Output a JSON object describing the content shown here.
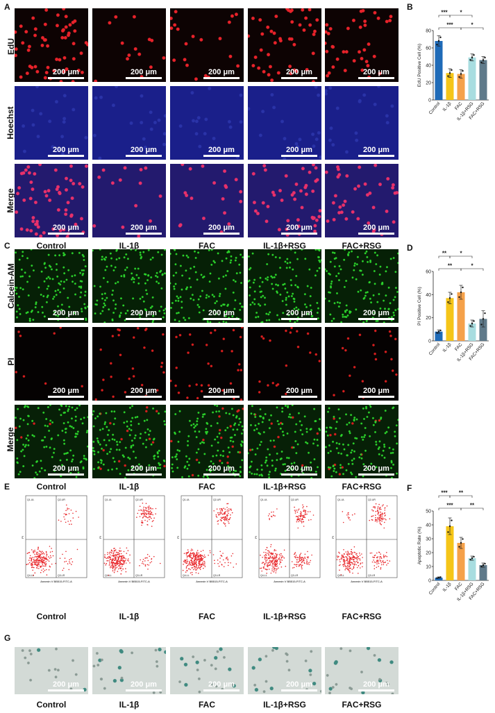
{
  "panels": {
    "A": "A",
    "B": "B",
    "C": "C",
    "D": "D",
    "E": "E",
    "F": "F",
    "G": "G"
  },
  "groups": [
    "Control",
    "IL-1β",
    "FAC",
    "IL-1β+RSG",
    "FAC+RSG"
  ],
  "scale_bar": "200 μm",
  "panel_A": {
    "rows": [
      "EdU",
      "Hoechst",
      "Merge"
    ]
  },
  "panel_C": {
    "rows": [
      "Calcein-AM",
      "PI",
      "Merge"
    ]
  },
  "panel_E": {
    "quadrants": [
      "Q1-UL",
      "Q2-UR",
      "Q3-LR",
      "Q4-LL"
    ],
    "ylabel": "PI",
    "xlabel": "Annexin V BB515-FITC-A"
  },
  "colors": {
    "edu_red": "#e8222a",
    "hoechst_blue": "#1a1f8a",
    "calcein_green": "#2bd42b",
    "pi_red": "#d81e1e",
    "flow_red": "#e8262a",
    "bar_control": "#1f6bb8",
    "bar_il1b": "#f5c518",
    "bar_fac": "#f5a14a",
    "bar_il1b_rsg": "#a8dde0",
    "bar_fac_rsg": "#5f7a8a"
  },
  "chart_data": [
    {
      "panel": "B",
      "type": "bar",
      "categories": [
        "Control",
        "IL-1β",
        "FAC",
        "IL-1β+RSG",
        "FAC+RSG"
      ],
      "values": [
        68,
        31,
        30,
        49,
        46
      ],
      "errors": [
        6,
        5,
        5,
        4,
        4
      ],
      "ylabel": "EdU Positive Cell (%)",
      "ylim": [
        0,
        80
      ],
      "yticks": [
        "0",
        "20",
        "40",
        "60",
        "80"
      ],
      "significance": [
        "***",
        "***",
        "*",
        "*"
      ]
    },
    {
      "panel": "D",
      "type": "bar",
      "categories": [
        "Control",
        "IL-1β",
        "FAC",
        "IL-1β+RSG",
        "FAC+RSG"
      ],
      "values": [
        8,
        37,
        42,
        15,
        19
      ],
      "errors": [
        1.5,
        5,
        6,
        3,
        7
      ],
      "ylabel": "PI Positive Cell (%)",
      "ylim": [
        0,
        60
      ],
      "yticks": [
        "0",
        "20",
        "40",
        "60"
      ],
      "significance": [
        "**",
        "**",
        "*",
        "*"
      ]
    },
    {
      "panel": "F",
      "type": "bar",
      "categories": [
        "Control",
        "IL-1β",
        "FAC",
        "IL-1β+RSG",
        "FAC+RSG"
      ],
      "values": [
        2,
        39,
        27,
        16,
        11
      ],
      "errors": [
        0.5,
        6,
        4,
        1.5,
        1.5
      ],
      "ylabel": "Apoptotic Rate (%)",
      "ylim": [
        0,
        50
      ],
      "yticks": [
        "0",
        "10",
        "20",
        "30",
        "40",
        "50"
      ],
      "significance": [
        "***",
        "***",
        "**",
        "**"
      ]
    }
  ]
}
